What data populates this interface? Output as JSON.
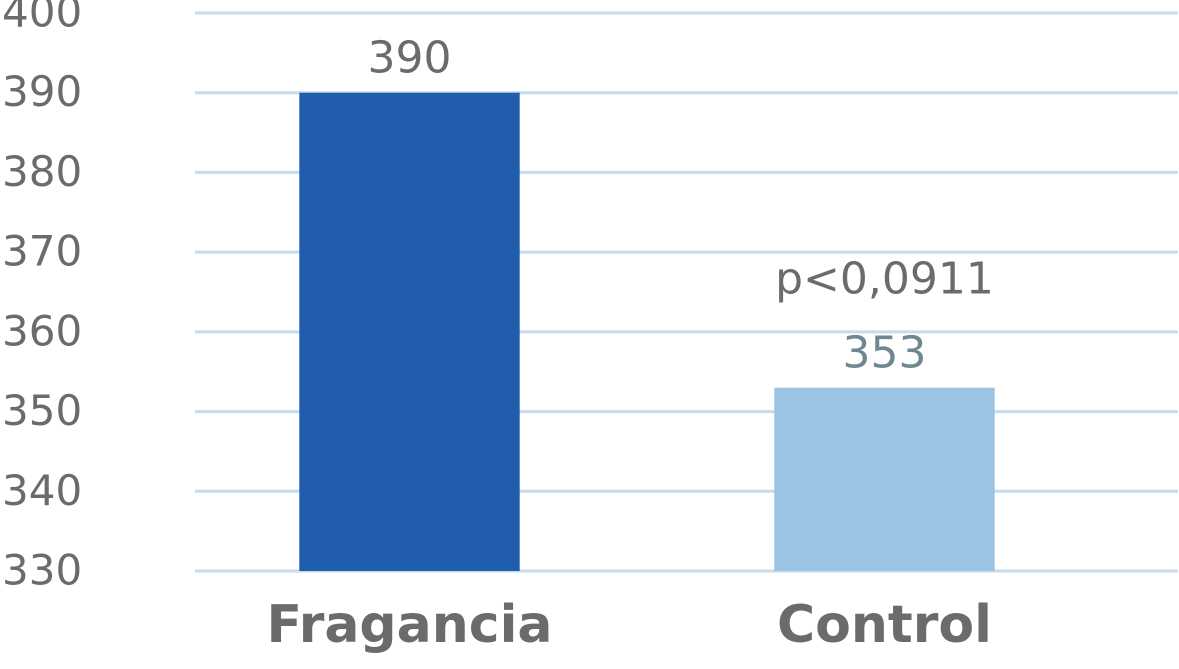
{
  "chart_data": {
    "type": "bar",
    "categories": [
      "Fragancia",
      "Control"
    ],
    "values": [
      390,
      353
    ],
    "colors": [
      "#215dad",
      "#9ac3e4"
    ],
    "annotation": "p<0,0911",
    "ylim": [
      330,
      400
    ],
    "yticks": [
      330,
      340,
      350,
      360,
      370,
      380,
      390,
      400
    ],
    "grid": true
  }
}
